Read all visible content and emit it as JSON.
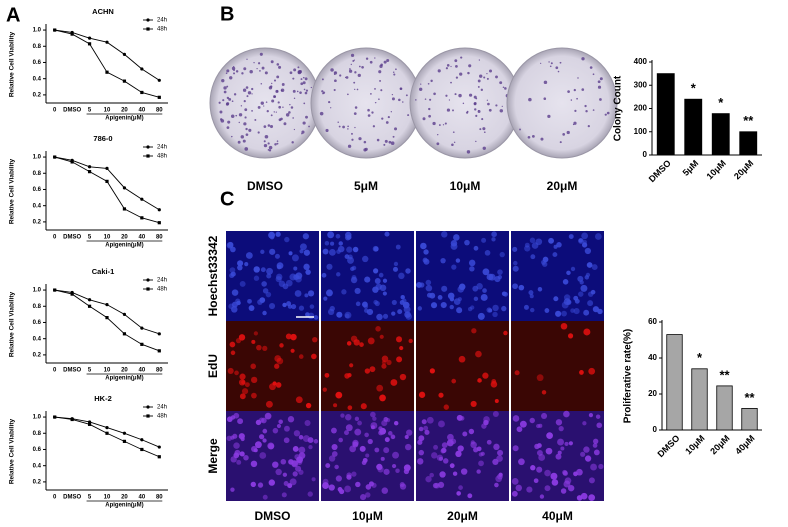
{
  "figure": {
    "panels": [
      "A",
      "B",
      "C"
    ],
    "colony_images": [
      "DMSO",
      "5μM",
      "10μM",
      "20μM"
    ],
    "edu_rows": [
      "Hoechst33342",
      "EdU",
      "Merge"
    ],
    "edu_columns": [
      "DMSO",
      "10μM",
      "20μM",
      "40μM"
    ]
  },
  "chart_data": [
    {
      "type": "line",
      "title": "ACHN",
      "x_label": "Apigenin(μM)",
      "y_label": "Relative Cell Viability",
      "categories": [
        "0",
        "DMSO",
        "5",
        "10",
        "20",
        "40",
        "80"
      ],
      "series": [
        {
          "name": "24h",
          "color": "#000000",
          "values": [
            1.0,
            0.97,
            0.9,
            0.85,
            0.7,
            0.52,
            0.38
          ]
        },
        {
          "name": "48h",
          "color": "#000000",
          "values": [
            1.0,
            0.95,
            0.83,
            0.48,
            0.37,
            0.23,
            0.17
          ]
        }
      ],
      "ylim": [
        0.1,
        1.05
      ],
      "yticks": [
        0.2,
        0.4,
        0.6,
        0.8,
        {
          "value": 1,
          "label": "1.0"
        }
      ],
      "legend": "top-right"
    },
    {
      "type": "line",
      "title": "786-0",
      "x_label": "Apigenin(μM)",
      "y_label": "Relative Cell Viability",
      "categories": [
        "0",
        "DMSO",
        "5",
        "10",
        "20",
        "40",
        "80"
      ],
      "series": [
        {
          "name": "24h",
          "color": "#000000",
          "values": [
            1.0,
            0.96,
            0.88,
            0.86,
            0.62,
            0.48,
            0.35
          ]
        },
        {
          "name": "48h",
          "color": "#000000",
          "values": [
            1.0,
            0.94,
            0.82,
            0.7,
            0.36,
            0.25,
            0.19
          ]
        }
      ],
      "ylim": [
        0.1,
        1.05
      ],
      "yticks": [
        0.2,
        0.4,
        0.6,
        0.8,
        {
          "value": 1,
          "label": "1.0"
        }
      ],
      "legend": "top-right"
    },
    {
      "type": "line",
      "title": "Caki-1",
      "x_label": "Apigenin(μM)",
      "y_label": "Relative Cell Viability",
      "categories": [
        "0",
        "DMSO",
        "5",
        "10",
        "20",
        "40",
        "80"
      ],
      "series": [
        {
          "name": "24h",
          "color": "#000000",
          "values": [
            1.0,
            0.97,
            0.88,
            0.82,
            0.7,
            0.53,
            0.46
          ]
        },
        {
          "name": "48h",
          "color": "#000000",
          "values": [
            1.0,
            0.95,
            0.8,
            0.66,
            0.46,
            0.33,
            0.25
          ]
        }
      ],
      "ylim": [
        0.1,
        1.05
      ],
      "yticks": [
        0.2,
        0.4,
        0.6,
        0.8,
        {
          "value": 1,
          "label": "1.0"
        }
      ],
      "legend": "top-right"
    },
    {
      "type": "line",
      "title": "HK-2",
      "x_label": "Apigenin(μM)",
      "y_label": "Relative Cell Viability",
      "categories": [
        "0",
        "DMSO",
        "5",
        "10",
        "20",
        "40",
        "80"
      ],
      "series": [
        {
          "name": "24h",
          "color": "#000000",
          "values": [
            1.0,
            0.98,
            0.94,
            0.87,
            0.8,
            0.72,
            0.63
          ]
        },
        {
          "name": "48h",
          "color": "#000000",
          "values": [
            1.0,
            0.97,
            0.91,
            0.8,
            0.7,
            0.6,
            0.51
          ]
        }
      ],
      "ylim": [
        0.1,
        1.05
      ],
      "yticks": [
        0.2,
        0.4,
        0.6,
        0.8,
        {
          "value": 1,
          "label": "1.0"
        }
      ],
      "legend": "top-right"
    },
    {
      "type": "bar",
      "y_label": "Colony Count",
      "categories": [
        "DMSO",
        "5μM",
        "10μM",
        "20μM"
      ],
      "values": [
        350,
        240,
        178,
        100
      ],
      "annotations": [
        null,
        "*",
        "*",
        "**"
      ],
      "color": "#000000",
      "ylim": [
        0,
        400
      ],
      "yticks": [
        0,
        100,
        200,
        300,
        400
      ]
    },
    {
      "type": "bar",
      "y_label": "Proliferative rate(%)",
      "categories": [
        "DMSO",
        "10μM",
        "20μM",
        "40μM"
      ],
      "values": [
        53,
        34,
        24.5,
        12
      ],
      "annotations": [
        null,
        "*",
        "**",
        "**"
      ],
      "color": "#a6a6a6",
      "ylim": [
        0,
        60
      ],
      "yticks": [
        0,
        20,
        40,
        60
      ]
    }
  ]
}
